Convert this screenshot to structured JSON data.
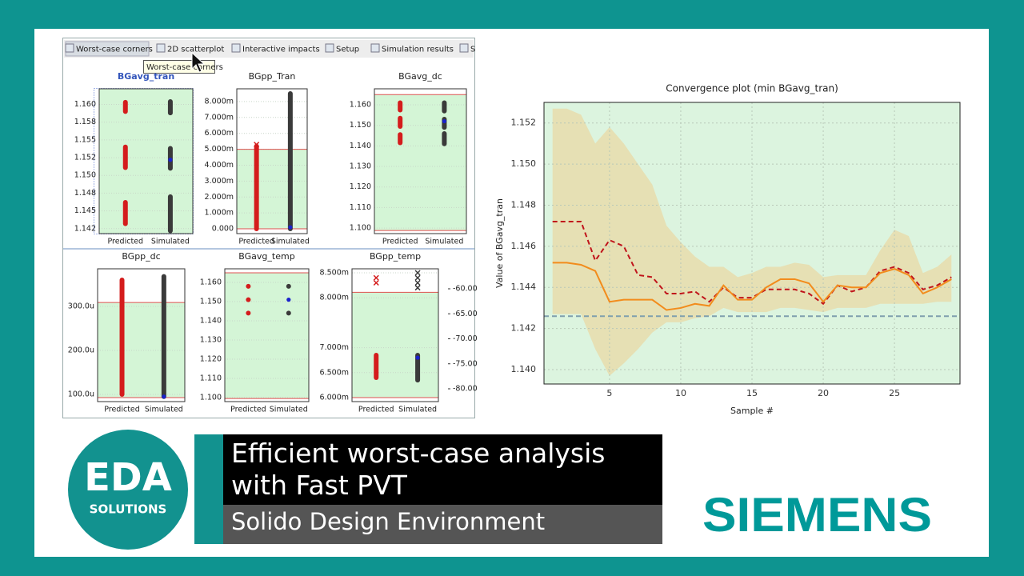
{
  "toolbar": {
    "tabs": [
      "Worst-case corners",
      "2D scatterplot",
      "Interactive impacts",
      "Setup",
      "Simulation results",
      "S"
    ],
    "tooltip": "Worst-case corners"
  },
  "chart_data": [
    {
      "type": "line",
      "title": "Convergence plot (min BGavg_tran)",
      "x_label": "Sample #",
      "y_label": "Value of BGavg_tran",
      "x": [
        1,
        2,
        3,
        4,
        5,
        6,
        7,
        8,
        9,
        10,
        11,
        12,
        13,
        14,
        15,
        16,
        17,
        18,
        19,
        20,
        21,
        22,
        23,
        24,
        25,
        26,
        27,
        28,
        29
      ],
      "series": [
        {
          "color": "#c0141b",
          "dashed": true,
          "values": [
            1.1472,
            1.1472,
            1.1472,
            1.1453,
            1.1463,
            1.146,
            1.1446,
            1.1445,
            1.1437,
            1.1437,
            1.1438,
            1.1433,
            1.144,
            1.1435,
            1.1435,
            1.1439,
            1.1439,
            1.1439,
            1.1437,
            1.1432,
            1.1441,
            1.1438,
            1.144,
            1.1448,
            1.145,
            1.1447,
            1.1439,
            1.1441,
            1.1445
          ]
        },
        {
          "color": "#f28c1c",
          "dashed": false,
          "values": [
            1.1452,
            1.1452,
            1.1451,
            1.1448,
            1.1433,
            1.1434,
            1.1434,
            1.1434,
            1.1429,
            1.143,
            1.1432,
            1.1431,
            1.1441,
            1.1434,
            1.1434,
            1.144,
            1.1444,
            1.1444,
            1.1442,
            1.1433,
            1.1441,
            1.144,
            1.144,
            1.1447,
            1.1449,
            1.1446,
            1.1437,
            1.144,
            1.1444
          ]
        }
      ],
      "band": {
        "color": "#e9d9a6",
        "upper": [
          1.1527,
          1.1527,
          1.1524,
          1.151,
          1.1518,
          1.151,
          1.15,
          1.149,
          1.147,
          1.1462,
          1.1455,
          1.145,
          1.145,
          1.1445,
          1.1447,
          1.145,
          1.145,
          1.1452,
          1.1451,
          1.1445,
          1.1446,
          1.1446,
          1.1446,
          1.1458,
          1.1468,
          1.1465,
          1.1447,
          1.145,
          1.1456
        ],
        "lower": [
          1.1427,
          1.1427,
          1.1427,
          1.141,
          1.1397,
          1.1403,
          1.141,
          1.1418,
          1.1423,
          1.1423,
          1.1425,
          1.1426,
          1.143,
          1.1428,
          1.1428,
          1.1428,
          1.143,
          1.143,
          1.1429,
          1.1428,
          1.143,
          1.143,
          1.143,
          1.1432,
          1.1432,
          1.1432,
          1.1432,
          1.1433,
          1.1433
        ]
      },
      "reference": {
        "value": 1.1426,
        "color": "#7f9fae"
      },
      "background": "#dcf4df",
      "grid": true,
      "xlim": [
        0.4,
        29.6
      ],
      "xticks": [
        5,
        10,
        15,
        20,
        25
      ],
      "ylim": [
        1.1393,
        1.153
      ],
      "yticks": [
        {
          "value": 1.14,
          "label": "1.140"
        },
        1.142,
        1.144,
        1.146,
        1.148,
        {
          "value": 1.15,
          "label": "1.150"
        },
        1.152
      ]
    },
    {
      "type": "strip",
      "title": "BGavg_tran",
      "ylim": [
        1.1418,
        1.1622
      ],
      "yticks": [
        {
          "value": 1.1425,
          "label": "1.142"
        },
        {
          "value": 1.145,
          "label": "1.145"
        },
        {
          "value": 1.1475,
          "label": "1.148"
        },
        {
          "value": 1.15,
          "label": "1.150"
        },
        {
          "value": 1.1525,
          "label": "1.152"
        },
        {
          "value": 1.155,
          "label": "1.155"
        },
        {
          "value": 1.1575,
          "label": "1.158"
        },
        {
          "value": 1.16,
          "label": "1.160"
        }
      ],
      "limits": [],
      "groups": [
        {
          "name": "Predicted",
          "color": "#d41c1c",
          "clusters": [
            [
              1.1432,
              1.1462
            ],
            [
              1.1511,
              1.154
            ],
            [
              1.159,
              1.1603
            ]
          ],
          "outliers": []
        },
        {
          "name": "Simulated",
          "color": "#3a3a3a",
          "clusters": [
            [
              1.1422,
              1.147
            ],
            [
              1.151,
              1.1538
            ],
            [
              1.1588,
              1.1604
            ]
          ],
          "outliers": [],
          "best": 1.1522
        }
      ]
    },
    {
      "type": "strip",
      "title": "BGpp_Tran",
      "ylim": [
        -0.3,
        8.8
      ],
      "yticks": [
        {
          "value": 0,
          "label": "0.000"
        },
        {
          "value": 1,
          "label": "1.000m"
        },
        {
          "value": 2,
          "label": "2.000m"
        },
        {
          "value": 3,
          "label": "3.000m"
        },
        {
          "value": 4,
          "label": "4.000m"
        },
        {
          "value": 5,
          "label": "5.000m"
        },
        {
          "value": 6,
          "label": "6.000m"
        },
        {
          "value": 7,
          "label": "7.000m"
        },
        {
          "value": 8,
          "label": "8.000m"
        }
      ],
      "limits": [
        0,
        5
      ],
      "groups": [
        {
          "name": "Predicted",
          "color": "#d41c1c",
          "clusters": [
            [
              0,
              5.2
            ]
          ],
          "outliers": [
            5.3
          ]
        },
        {
          "name": "Simulated",
          "color": "#3a3a3a",
          "clusters": [
            [
              0,
              8.5
            ]
          ],
          "outliers": [],
          "best": 0.1
        }
      ]
    },
    {
      "type": "strip",
      "title": "BGavg_dc",
      "ylim": [
        1.0973,
        1.1678
      ],
      "yticks": [
        {
          "value": 1.1,
          "label": "1.100"
        },
        {
          "value": 1.11,
          "label": "1.110"
        },
        {
          "value": 1.12,
          "label": "1.120"
        },
        {
          "value": 1.13,
          "label": "1.130"
        },
        {
          "value": 1.14,
          "label": "1.140"
        },
        {
          "value": 1.15,
          "label": "1.150"
        },
        {
          "value": 1.16,
          "label": "1.160"
        }
      ],
      "limits": [
        1.0988,
        1.165
      ],
      "groups": [
        {
          "name": "Predicted",
          "color": "#d41c1c",
          "clusters": [
            [
              1.1415,
              1.1455
            ],
            [
              1.1495,
              1.1535
            ],
            [
              1.1575,
              1.161
            ]
          ],
          "outliers": []
        },
        {
          "name": "Simulated",
          "color": "#3a3a3a",
          "clusters": [
            [
              1.141,
              1.146
            ],
            [
              1.149,
              1.153
            ],
            [
              1.157,
              1.161
            ]
          ],
          "outliers": [],
          "best": 1.152
        }
      ]
    },
    {
      "type": "strip",
      "title": "BGpp_dc",
      "ylim": [
        83.6,
        385.5
      ],
      "yticks": [
        {
          "value": 100,
          "label": "100.0u"
        },
        {
          "value": 200,
          "label": "200.0u"
        },
        {
          "value": 300,
          "label": "300.0u"
        }
      ],
      "limits": [
        92.7,
        309
      ],
      "groups": [
        {
          "name": "Predicted",
          "color": "#d41c1c",
          "clusters": [
            [
              100,
              360
            ]
          ],
          "outliers": []
        },
        {
          "name": "Simulated",
          "color": "#3a3a3a",
          "clusters": [
            [
              95,
              368
            ]
          ],
          "outliers": [],
          "best": 95
        }
      ]
    },
    {
      "type": "strip",
      "title": "BGavg_temp",
      "ylim": [
        1.0979,
        1.1671
      ],
      "yticks": [
        {
          "value": 1.1,
          "label": "1.100"
        },
        {
          "value": 1.11,
          "label": "1.110"
        },
        {
          "value": 1.12,
          "label": "1.120"
        },
        {
          "value": 1.13,
          "label": "1.130"
        },
        {
          "value": 1.14,
          "label": "1.140"
        },
        {
          "value": 1.15,
          "label": "1.150"
        },
        {
          "value": 1.16,
          "label": "1.160"
        }
      ],
      "limits": [
        1.0995,
        1.165
      ],
      "groups": [
        {
          "name": "Predicted",
          "color": "#d41c1c",
          "clusters": [
            [
              1.144,
              1.144
            ],
            [
              1.151,
              1.151
            ],
            [
              1.158,
              1.158
            ]
          ],
          "outliers": []
        },
        {
          "name": "Simulated",
          "color": "#3a3a3a",
          "clusters": [
            [
              1.144,
              1.144
            ],
            [
              1.158,
              1.158
            ]
          ],
          "outliers": [],
          "best": 1.151
        }
      ]
    },
    {
      "type": "strip",
      "title": "BGpp_temp",
      "ylim": [
        5.92,
        8.58
      ],
      "yticks": [
        {
          "value": 6,
          "label": "6.000m"
        },
        {
          "value": 6.5,
          "label": "6.500m"
        },
        {
          "value": 7,
          "label": "7.000m"
        },
        {
          "value": 8,
          "label": "8.000m"
        },
        {
          "value": 8.5,
          "label": "8.500m"
        }
      ],
      "limits": [
        6,
        8.11
      ],
      "groups": [
        {
          "name": "Predicted",
          "color": "#d41c1c",
          "clusters": [
            [
              6.4,
              6.85
            ]
          ],
          "outliers": [
            8.3,
            8.4
          ]
        },
        {
          "name": "Simulated",
          "color": "#3a3a3a",
          "clusters": [
            [
              6.35,
              6.85
            ]
          ],
          "outliers": [
            8.2,
            8.3,
            8.4,
            8.5
          ],
          "best": 6.8
        }
      ],
      "y2lim": [
        -82.56,
        -56
      ],
      "y2ticks": [
        {
          "value": -80,
          "label": "-80.00"
        },
        {
          "value": -75,
          "label": "-75.00"
        },
        {
          "value": -70,
          "label": "-70.00"
        },
        {
          "value": -65,
          "label": "-65.00"
        },
        {
          "value": -60,
          "label": "-60.00"
        }
      ]
    }
  ],
  "banner": {
    "title": "Efficient worst-case analysis with Fast PVT",
    "subtitle": "Solido Design Environment"
  },
  "logo": {
    "name": "EDA",
    "tagline": "SOLUTIONS"
  },
  "brand": "SIEMENS"
}
